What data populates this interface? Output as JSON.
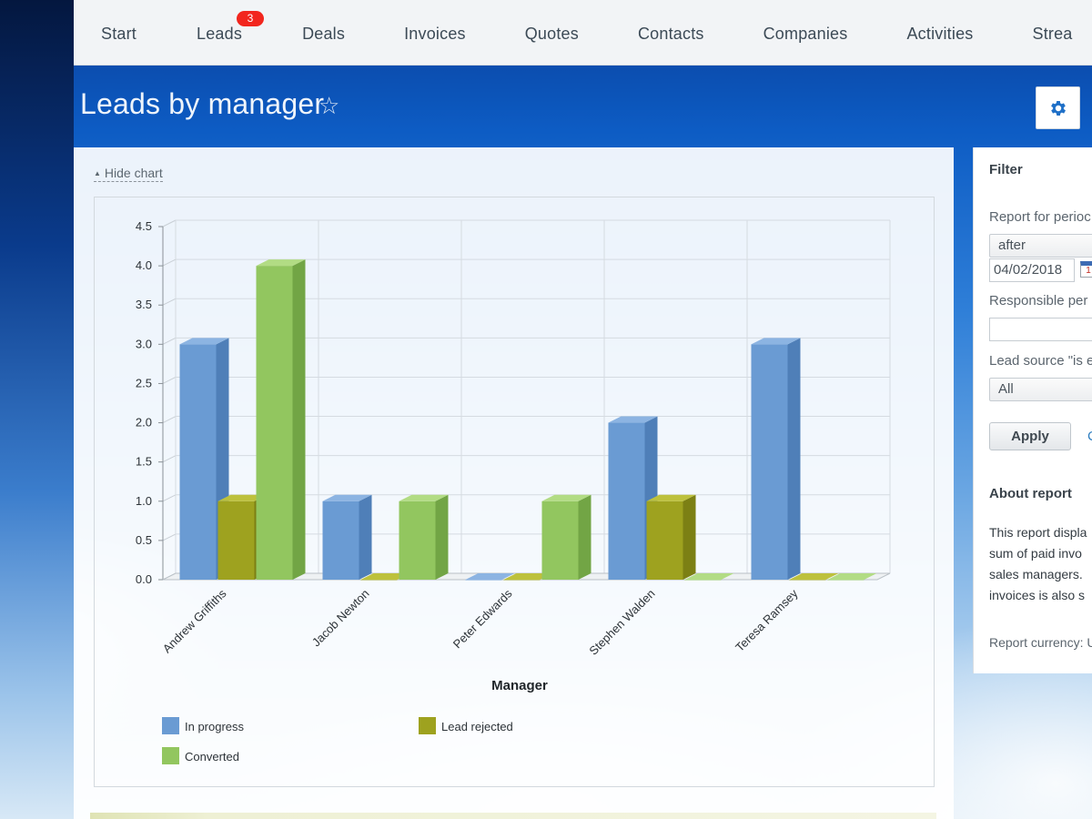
{
  "nav": {
    "items": [
      {
        "label": "Start"
      },
      {
        "label": "Leads",
        "badge": "3"
      },
      {
        "label": "Deals"
      },
      {
        "label": "Invoices"
      },
      {
        "label": "Quotes"
      },
      {
        "label": "Contacts"
      },
      {
        "label": "Companies"
      },
      {
        "label": "Activities"
      },
      {
        "label": "Strea"
      }
    ]
  },
  "page": {
    "title": "Leads by manager",
    "star_icon": "star-outline-icon",
    "settings_icon": "gear-icon",
    "hide_chart_label": "Hide chart"
  },
  "filter": {
    "title": "Filter",
    "period_label": "Report for perioc",
    "period_select": "after",
    "period_date": "04/02/2018",
    "responsible_label": "Responsible per",
    "responsible_value": "",
    "source_label": "Lead source \"is e",
    "source_select": "All",
    "apply_label": "Apply",
    "cancel_label": "C"
  },
  "about": {
    "title": "About report",
    "lines": [
      "This report displa",
      "sum of paid invo",
      "sales managers.",
      "invoices is also s"
    ],
    "currency": "Report currency: U"
  },
  "colors": {
    "in_progress": "#6a9bd3",
    "lead_rejected": "#9ea21f",
    "converted": "#92c65f",
    "badge": "#f2261e"
  },
  "chart_data": {
    "type": "bar",
    "xlabel": "Manager",
    "ylabel": "",
    "ylim": [
      0,
      4.5
    ],
    "y_ticks": [
      "0.0",
      "0.5",
      "1.0",
      "1.5",
      "2.0",
      "2.5",
      "3.0",
      "3.5",
      "4.0",
      "4.5"
    ],
    "categories": [
      "Andrew Griffiths",
      "Jacob Newton",
      "Peter Edwards",
      "Stephen Walden",
      "Teresa Ramsey"
    ],
    "series": [
      {
        "name": "In progress",
        "values": [
          3,
          1,
          0,
          2,
          3
        ]
      },
      {
        "name": "Lead rejected",
        "values": [
          1,
          0,
          0,
          1,
          0
        ]
      },
      {
        "name": "Converted",
        "values": [
          4,
          1,
          1,
          0,
          0
        ]
      }
    ],
    "grid": true,
    "legend": "bottom",
    "style": "3d"
  }
}
